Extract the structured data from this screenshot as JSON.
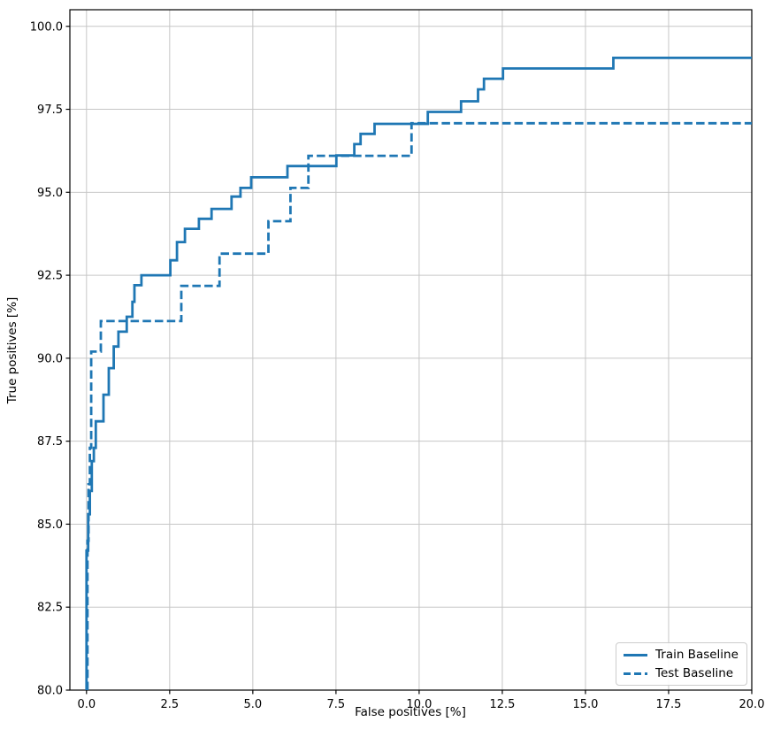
{
  "chart_data": {
    "type": "line",
    "subtype": "roc-step-curves",
    "title": "",
    "xlabel": "False positives [%]",
    "ylabel": "True positives [%]",
    "xlim": [
      -0.5,
      20
    ],
    "ylim": [
      80,
      100.5
    ],
    "xticks": [
      0,
      2.5,
      5,
      7.5,
      10,
      12.5,
      15,
      17.5,
      20
    ],
    "xtick_labels": [
      "0.0",
      "2.5",
      "5.0",
      "7.5",
      "10.0",
      "12.5",
      "15.0",
      "17.5",
      "20.0"
    ],
    "yticks": [
      80,
      82.5,
      85,
      87.5,
      90,
      92.5,
      95,
      97.5,
      100
    ],
    "ytick_labels": [
      "80.0",
      "82.5",
      "85.0",
      "87.5",
      "90.0",
      "92.5",
      "95.0",
      "97.5",
      "100.0"
    ],
    "grid": true,
    "grid_color": "#c6c6c6",
    "line_color": "#1f77b4",
    "legend": {
      "position": "lower right",
      "entries": [
        {
          "label": "Train Baseline",
          "style": "solid"
        },
        {
          "label": "Test Baseline",
          "style": "dashed"
        }
      ]
    },
    "series": [
      {
        "name": "Train Baseline",
        "style": "solid",
        "points": [
          [
            0,
            80
          ],
          [
            0,
            84.2
          ],
          [
            0.05,
            84.2
          ],
          [
            0.05,
            85.3
          ],
          [
            0.1,
            85.3
          ],
          [
            0.1,
            86.0
          ],
          [
            0.16,
            86.0
          ],
          [
            0.16,
            86.9
          ],
          [
            0.22,
            86.9
          ],
          [
            0.22,
            87.3
          ],
          [
            0.28,
            87.3
          ],
          [
            0.28,
            88.1
          ],
          [
            0.51,
            88.1
          ],
          [
            0.51,
            88.9
          ],
          [
            0.67,
            88.9
          ],
          [
            0.67,
            89.7
          ],
          [
            0.82,
            89.7
          ],
          [
            0.82,
            90.35
          ],
          [
            0.96,
            90.35
          ],
          [
            0.96,
            90.8
          ],
          [
            1.21,
            90.8
          ],
          [
            1.21,
            91.25
          ],
          [
            1.38,
            91.25
          ],
          [
            1.38,
            91.7
          ],
          [
            1.44,
            91.7
          ],
          [
            1.44,
            92.2
          ],
          [
            1.65,
            92.2
          ],
          [
            1.65,
            92.5
          ],
          [
            2.52,
            92.5
          ],
          [
            2.52,
            92.95
          ],
          [
            2.72,
            92.95
          ],
          [
            2.72,
            93.5
          ],
          [
            2.96,
            93.5
          ],
          [
            2.96,
            93.9
          ],
          [
            3.38,
            93.9
          ],
          [
            3.38,
            94.2
          ],
          [
            3.76,
            94.2
          ],
          [
            3.76,
            94.5
          ],
          [
            4.36,
            94.5
          ],
          [
            4.36,
            94.87
          ],
          [
            4.63,
            94.87
          ],
          [
            4.63,
            95.13
          ],
          [
            4.95,
            95.13
          ],
          [
            4.95,
            95.45
          ],
          [
            6.04,
            95.45
          ],
          [
            6.04,
            95.79
          ],
          [
            7.51,
            95.79
          ],
          [
            7.51,
            96.11
          ],
          [
            8.05,
            96.11
          ],
          [
            8.05,
            96.45
          ],
          [
            8.24,
            96.45
          ],
          [
            8.24,
            96.76
          ],
          [
            8.66,
            96.76
          ],
          [
            8.66,
            97.06
          ],
          [
            10.26,
            97.06
          ],
          [
            10.26,
            97.42
          ],
          [
            11.26,
            97.42
          ],
          [
            11.26,
            97.74
          ],
          [
            11.77,
            97.74
          ],
          [
            11.77,
            98.1
          ],
          [
            11.95,
            98.1
          ],
          [
            11.95,
            98.42
          ],
          [
            12.52,
            98.42
          ],
          [
            12.52,
            98.73
          ],
          [
            15.84,
            98.73
          ],
          [
            15.84,
            99.05
          ],
          [
            20,
            99.05
          ]
        ]
      },
      {
        "name": "Test Baseline",
        "style": "dashed",
        "points": [
          [
            0.03,
            80
          ],
          [
            0.03,
            84.5
          ],
          [
            0.06,
            84.5
          ],
          [
            0.06,
            86.2
          ],
          [
            0.1,
            86.2
          ],
          [
            0.1,
            87.3
          ],
          [
            0.14,
            87.3
          ],
          [
            0.14,
            90.2
          ],
          [
            0.43,
            90.2
          ],
          [
            0.43,
            91.12
          ],
          [
            2.85,
            91.12
          ],
          [
            2.85,
            92.18
          ],
          [
            4.0,
            92.18
          ],
          [
            4.0,
            93.15
          ],
          [
            5.47,
            93.15
          ],
          [
            5.47,
            94.13
          ],
          [
            6.13,
            94.13
          ],
          [
            6.13,
            95.13
          ],
          [
            6.67,
            95.13
          ],
          [
            6.67,
            96.1
          ],
          [
            9.77,
            96.1
          ],
          [
            9.77,
            97.08
          ],
          [
            20,
            97.08
          ]
        ]
      }
    ]
  }
}
